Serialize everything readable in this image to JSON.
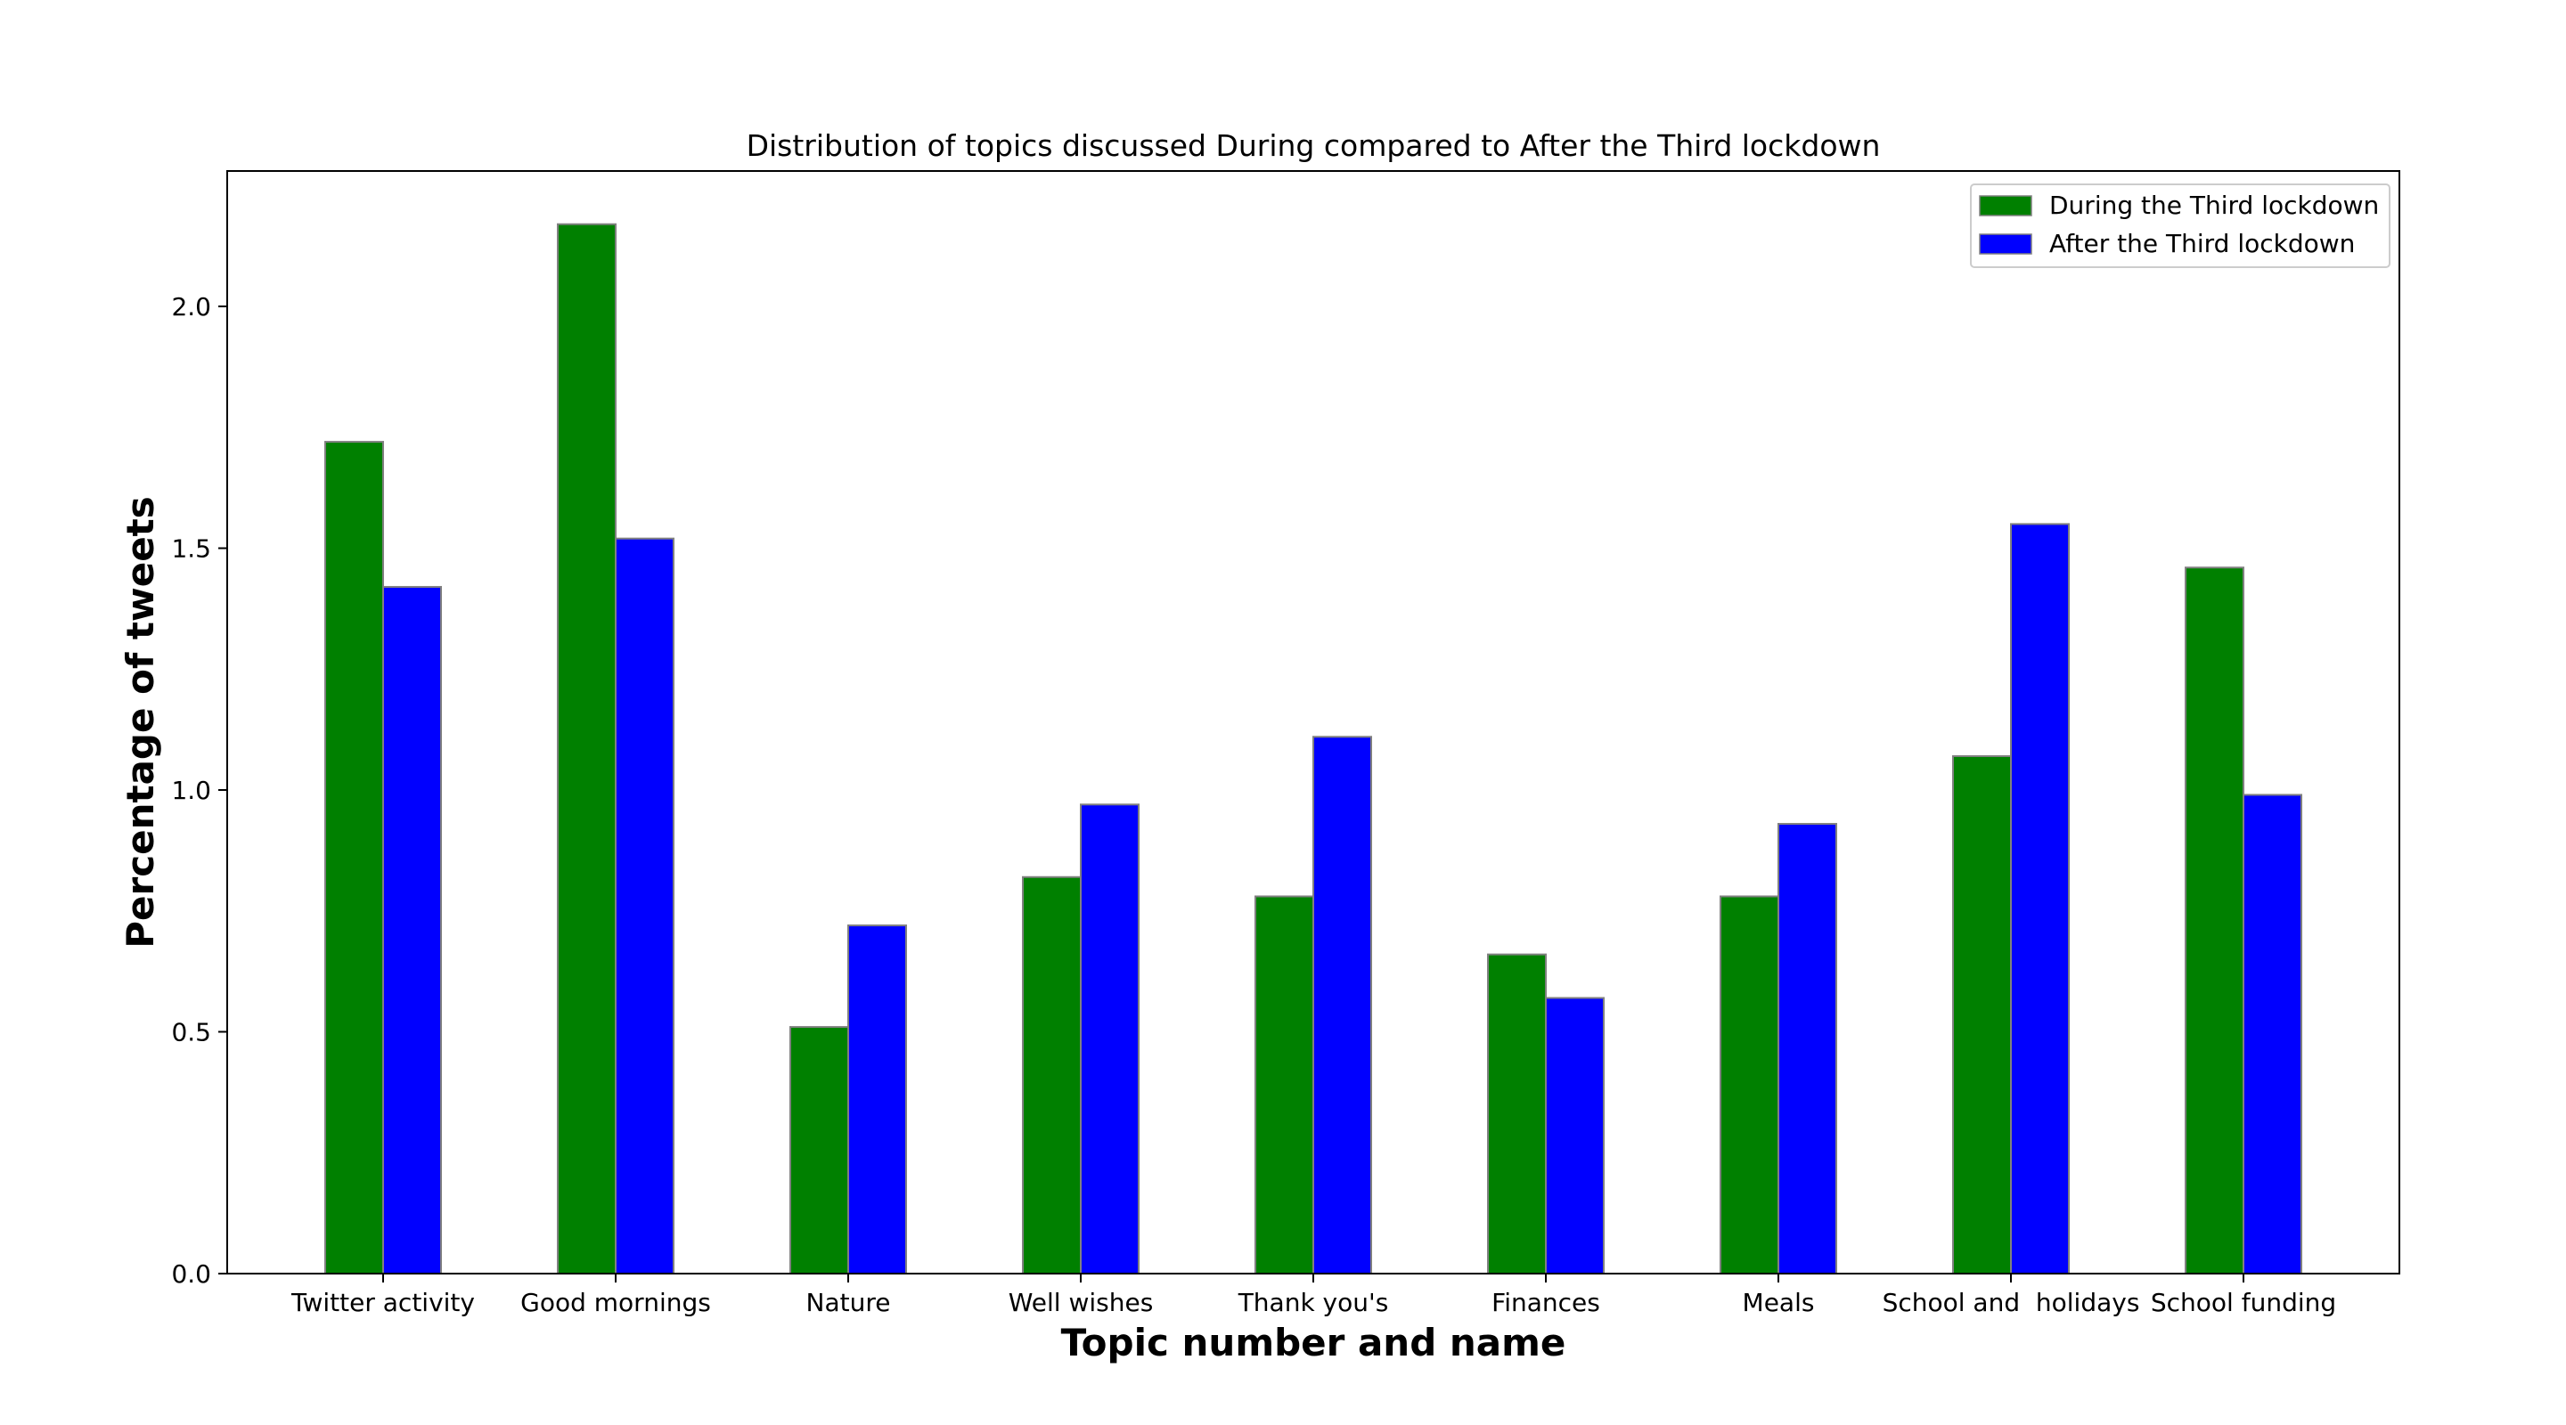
{
  "chart_data": {
    "type": "bar",
    "title": "Distribution of topics discussed During compared to After the Third lockdown",
    "xlabel": "Topic number and name",
    "ylabel": "Percentage of tweets",
    "categories": [
      "Twitter activity",
      "Good mornings",
      "Nature",
      "Well wishes",
      "Thank you's",
      "Finances",
      "Meals",
      "School and  holidays",
      "School funding"
    ],
    "series": [
      {
        "name": "During the Third lockdown",
        "color": "#008000",
        "values": [
          1.72,
          2.17,
          0.51,
          0.82,
          0.78,
          0.66,
          0.78,
          1.07,
          1.46
        ]
      },
      {
        "name": "After the Third lockdown",
        "color": "#0000ff",
        "values": [
          1.42,
          1.52,
          0.72,
          0.97,
          1.11,
          0.57,
          0.93,
          1.55,
          0.99
        ]
      }
    ],
    "ylim": [
      0,
      2.28
    ],
    "yticks": [
      0.0,
      0.5,
      1.0,
      1.5,
      2.0
    ],
    "ytick_labels": [
      "0.0",
      "0.5",
      "1.0",
      "1.5",
      "2.0"
    ],
    "grid": false,
    "legend_position": "top-right",
    "bar_edge_color": "#808080"
  }
}
